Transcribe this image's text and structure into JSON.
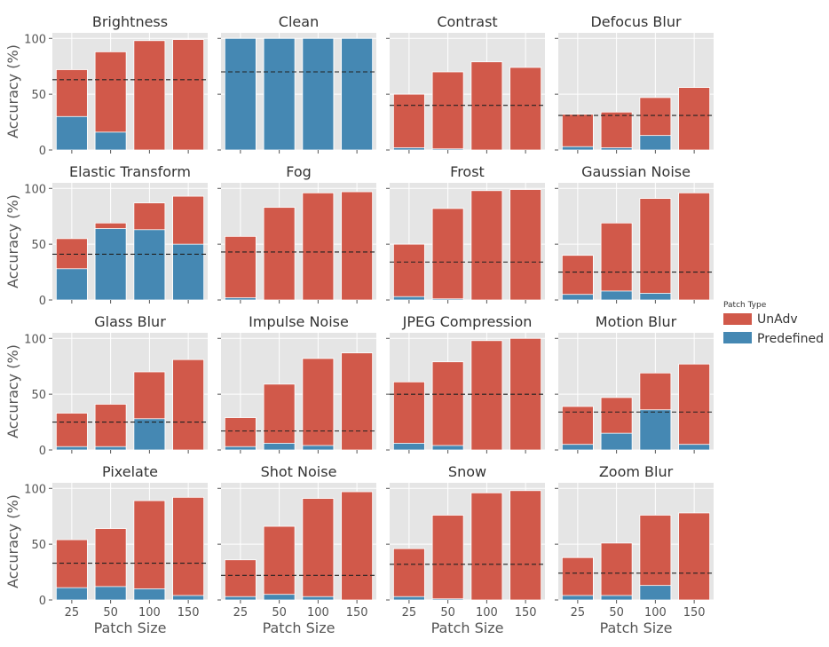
{
  "chart_data": {
    "type": "bar",
    "stacked": true,
    "layout": "4x4 facet grid",
    "categories": [
      "25",
      "50",
      "100",
      "150"
    ],
    "xlabel": "Patch Size",
    "ylabel": "Accuracy (%)",
    "ylim": [
      0,
      105
    ],
    "yticks": [
      0,
      50,
      100
    ],
    "grid": true,
    "legend": {
      "title": "Patch Type",
      "position": "right",
      "entries": [
        {
          "name": "UnAdv",
          "color": "#d1594a"
        },
        {
          "name": "Predefined",
          "color": "#4588b3"
        }
      ]
    },
    "reference_line": "dashed horizontal baseline per panel",
    "panels": [
      {
        "title": "Brightness",
        "unadv": [
          72,
          88,
          98,
          99
        ],
        "predefined": [
          30,
          16,
          0,
          0
        ],
        "baseline": 63
      },
      {
        "title": "Clean",
        "unadv": [
          100,
          100,
          100,
          100
        ],
        "predefined": [
          100,
          100,
          100,
          100
        ],
        "baseline": 70
      },
      {
        "title": "Contrast",
        "unadv": [
          50,
          70,
          79,
          74
        ],
        "predefined": [
          2,
          1,
          0,
          0
        ],
        "baseline": 40
      },
      {
        "title": "Defocus Blur",
        "unadv": [
          32,
          34,
          47,
          56
        ],
        "predefined": [
          3,
          2,
          13,
          0
        ],
        "baseline": 31
      },
      {
        "title": "Elastic Transform",
        "unadv": [
          55,
          69,
          87,
          93
        ],
        "predefined": [
          28,
          64,
          63,
          50
        ],
        "baseline": 41
      },
      {
        "title": "Fog",
        "unadv": [
          57,
          83,
          96,
          97
        ],
        "predefined": [
          2,
          0,
          0,
          0
        ],
        "baseline": 43
      },
      {
        "title": "Frost",
        "unadv": [
          50,
          82,
          98,
          99
        ],
        "predefined": [
          3,
          1,
          0,
          0
        ],
        "baseline": 34
      },
      {
        "title": "Gaussian Noise",
        "unadv": [
          40,
          69,
          91,
          96
        ],
        "predefined": [
          5,
          8,
          6,
          0
        ],
        "baseline": 25
      },
      {
        "title": "Glass Blur",
        "unadv": [
          33,
          41,
          70,
          81
        ],
        "predefined": [
          3,
          3,
          28,
          0
        ],
        "baseline": 25
      },
      {
        "title": "Impulse Noise",
        "unadv": [
          29,
          59,
          82,
          87
        ],
        "predefined": [
          3,
          6,
          4,
          0
        ],
        "baseline": 17
      },
      {
        "title": "JPEG Compression",
        "unadv": [
          61,
          79,
          98,
          100
        ],
        "predefined": [
          6,
          4,
          0,
          0
        ],
        "baseline": 50
      },
      {
        "title": "Motion Blur",
        "unadv": [
          39,
          47,
          69,
          77
        ],
        "predefined": [
          5,
          15,
          36,
          5
        ],
        "baseline": 34
      },
      {
        "title": "Pixelate",
        "unadv": [
          54,
          64,
          89,
          92
        ],
        "predefined": [
          11,
          12,
          10,
          4
        ],
        "baseline": 33
      },
      {
        "title": "Shot Noise",
        "unadv": [
          36,
          66,
          91,
          97
        ],
        "predefined": [
          3,
          5,
          3,
          0
        ],
        "baseline": 22
      },
      {
        "title": "Snow",
        "unadv": [
          46,
          76,
          96,
          98
        ],
        "predefined": [
          3,
          1,
          0,
          0
        ],
        "baseline": 32
      },
      {
        "title": "Zoom Blur",
        "unadv": [
          38,
          51,
          76,
          78
        ],
        "predefined": [
          4,
          4,
          13,
          0
        ],
        "baseline": 24
      }
    ]
  }
}
